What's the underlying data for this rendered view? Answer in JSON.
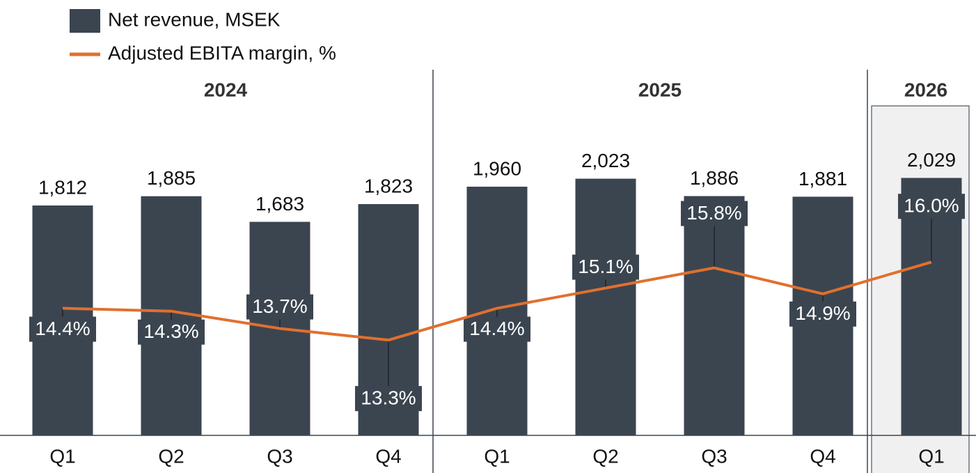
{
  "chart_data": {
    "type": "bar-line",
    "groups": [
      {
        "label": "2024",
        "categories": [
          "Q1",
          "Q2",
          "Q3",
          "Q4"
        ]
      },
      {
        "label": "2025",
        "categories": [
          "Q1",
          "Q2",
          "Q3",
          "Q4"
        ]
      },
      {
        "label": "2026",
        "categories": [
          "Q1"
        ]
      }
    ],
    "series": [
      {
        "name": "Net revenue, MSEK",
        "color": "#3b4550",
        "type": "bar",
        "values": [
          1812,
          1885,
          1683,
          1823,
          1960,
          2023,
          1886,
          1881,
          2029
        ],
        "value_labels": [
          "1,812",
          "1,885",
          "1,683",
          "1,823",
          "1,960",
          "2,023",
          "1,886",
          "1,881",
          "2,029"
        ]
      },
      {
        "name": "Adjusted EBITA margin, %",
        "color": "#e0702f",
        "type": "line",
        "axis": "y2",
        "values": [
          14.4,
          14.3,
          13.7,
          13.3,
          14.4,
          15.1,
          15.8,
          14.9,
          16.0
        ],
        "value_labels": [
          "14.4%",
          "14.3%",
          "13.7%",
          "13.3%",
          "14.4%",
          "15.1%",
          "15.8%",
          "14.9%",
          "16.0%"
        ]
      }
    ],
    "ylim": [
      0,
      2800
    ],
    "y2lim": [
      10,
      22.3
    ],
    "legend": "top-left"
  }
}
